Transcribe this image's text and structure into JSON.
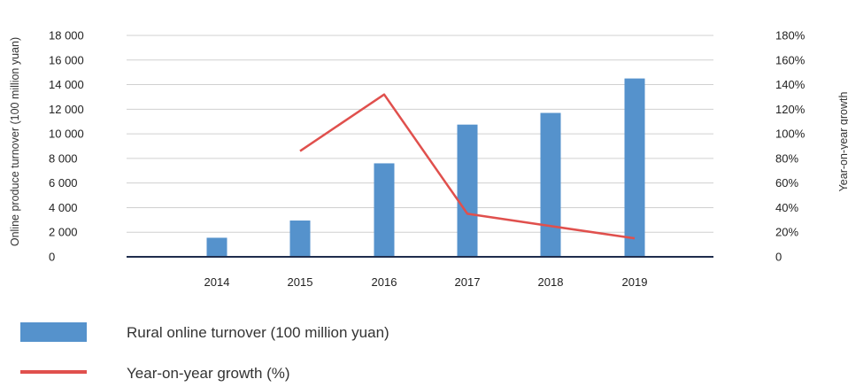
{
  "chart_data": {
    "type": "bar",
    "categories": [
      "2014",
      "2015",
      "2016",
      "2017",
      "2018",
      "2019"
    ],
    "series": [
      {
        "name": "Rural online turnover (100 million yuan)",
        "type": "bar",
        "axis": "left",
        "color": "#5592cc",
        "values": [
          1550,
          2950,
          7600,
          10750,
          11700,
          14500
        ]
      },
      {
        "name": "Year-on-year growth (%)",
        "type": "line",
        "axis": "right",
        "color": "#e0504d",
        "values": [
          null,
          86,
          132,
          35,
          25,
          15
        ]
      }
    ],
    "ylabel": "Online produce turnover (100 million yuan)",
    "y2label": "Year-on-year growth",
    "ylim": [
      0,
      18000
    ],
    "y2lim": [
      0,
      180
    ],
    "yticks": [
      "0",
      "2 000",
      "4 000",
      "6 000",
      "8 000",
      "10 000",
      "12 000",
      "14 000",
      "16 000",
      "18 000"
    ],
    "y2ticks": [
      "0",
      "20%",
      "40%",
      "60%",
      "80%",
      "100%",
      "120%",
      "140%",
      "160%",
      "180%"
    ],
    "grid": true,
    "legend_position": "bottom-left"
  }
}
